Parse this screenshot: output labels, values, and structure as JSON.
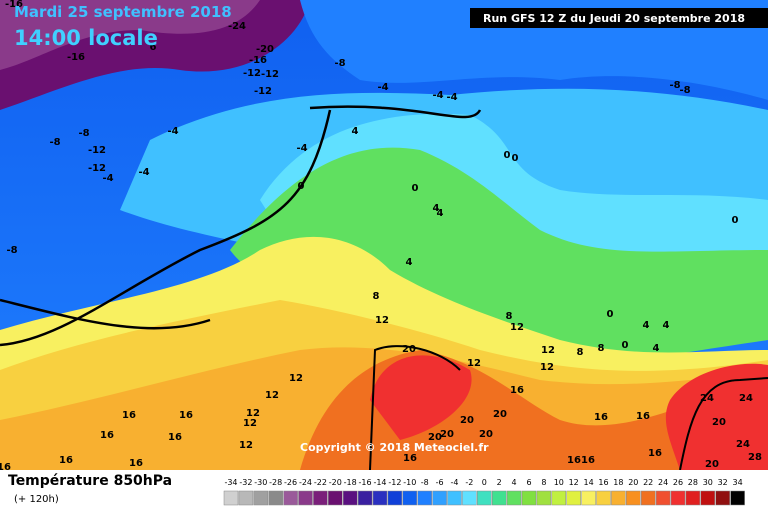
{
  "header": {
    "date": "Mardi 25 septembre 2018",
    "time": "14:00 locale",
    "run": "Run GFS 12 Z du Jeudi 20 septembre 2018"
  },
  "copyright": "Copyright © 2018 Meteociel.fr",
  "footer": {
    "title": "Température 850hPa",
    "lead": "(+ 120h)"
  },
  "legend": {
    "ticks": [
      -34,
      -32,
      -30,
      -28,
      -26,
      -24,
      -22,
      -20,
      -18,
      -16,
      -14,
      -12,
      -10,
      -8,
      -6,
      -4,
      -2,
      0,
      2,
      4,
      6,
      8,
      10,
      12,
      14,
      16,
      18,
      20,
      22,
      24,
      26,
      28,
      30,
      32,
      34
    ],
    "colors": [
      "#d0d0d0",
      "#b8b8b8",
      "#a0a0a0",
      "#8a8a8a",
      "#9a5a9a",
      "#8a3a8a",
      "#7a1f7a",
      "#6a1070",
      "#5a1080",
      "#3a20a0",
      "#2a30c0",
      "#1040d8",
      "#1060f0",
      "#2080ff",
      "#30a0ff",
      "#40c0ff",
      "#60e0ff",
      "#40e0c0",
      "#40e090",
      "#60e060",
      "#80e040",
      "#a0e040",
      "#c0f040",
      "#e0f040",
      "#f8f060",
      "#f8d040",
      "#f8b030",
      "#f89020",
      "#f07020",
      "#f05030",
      "#f03030",
      "#e02020",
      "#c01010",
      "#901010",
      "#000000"
    ]
  },
  "map_labels": [
    -24,
    -20,
    -16,
    -12,
    -12,
    -12,
    6,
    -16,
    -8,
    -4,
    -4,
    -4,
    -8,
    -8,
    -4,
    4,
    -8,
    -8,
    -12,
    -4,
    -12,
    -4,
    -4,
    0,
    0,
    0,
    0,
    4,
    4,
    0,
    -8,
    4,
    8,
    12,
    8,
    12,
    0,
    4,
    4,
    8,
    8,
    0,
    4,
    12,
    12,
    20,
    12,
    12,
    12,
    16,
    16,
    12,
    12,
    16,
    16,
    16,
    12,
    20,
    20,
    16,
    16,
    24,
    24,
    20,
    20,
    20,
    20,
    16,
    20,
    24,
    28,
    -16,
    16,
    16,
    16,
    16,
    16,
    16
  ]
}
